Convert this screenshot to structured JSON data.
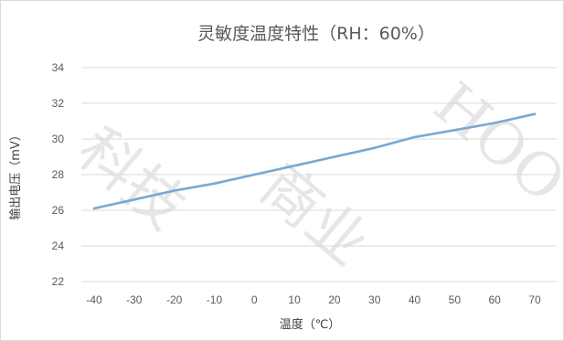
{
  "chart_data": {
    "type": "line",
    "title": "灵敏度温度特性（RH：60%）",
    "xlabel": "温度（℃）",
    "ylabel": "输出电压（mV）",
    "categories": [
      "-40",
      "-30",
      "-20",
      "-10",
      "0",
      "10",
      "20",
      "30",
      "40",
      "50",
      "60",
      "70"
    ],
    "x": [
      -40,
      -30,
      -20,
      -10,
      0,
      10,
      20,
      30,
      40,
      50,
      60,
      70
    ],
    "y_ticks": [
      "22",
      "24",
      "26",
      "28",
      "30",
      "32",
      "34"
    ],
    "ylim": [
      22,
      34
    ],
    "series": [
      {
        "values": [
          26.1,
          26.6,
          27.1,
          27.5,
          28.0,
          28.5,
          29.0,
          29.5,
          30.1,
          30.5,
          30.9,
          31.4
        ]
      }
    ],
    "grid": true,
    "legend": "none",
    "colors": {
      "line": "#7aa7d2",
      "grid": "#d9d9d9",
      "text": "#595959"
    }
  }
}
